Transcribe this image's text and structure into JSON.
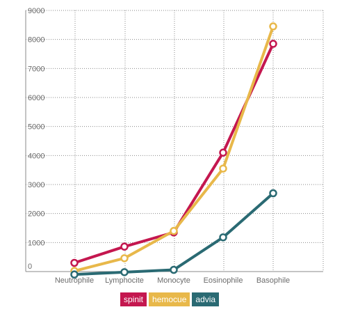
{
  "chart_data": {
    "type": "line",
    "title": "",
    "xlabel": "",
    "ylabel": "",
    "categories": [
      "Neutrophile",
      "Lymphocite",
      "Monocyte",
      "Eosinophile",
      "Basophile"
    ],
    "ylim": [
      0,
      9000
    ],
    "yticks": [
      0,
      1000,
      2000,
      3000,
      4000,
      5000,
      6000,
      7000,
      8000,
      9000
    ],
    "grid": true,
    "legend_position": "bottom-center",
    "series": [
      {
        "name": "spinit",
        "color": "#c4174f",
        "values": [
          300,
          860,
          1350,
          4100,
          7850
        ]
      },
      {
        "name": "hemocue",
        "color": "#e8b84a",
        "values": [
          20,
          460,
          1400,
          3550,
          8450
        ]
      },
      {
        "name": "advia",
        "color": "#2a6a73",
        "values": [
          -100,
          -20,
          60,
          1180,
          2700
        ]
      }
    ]
  }
}
